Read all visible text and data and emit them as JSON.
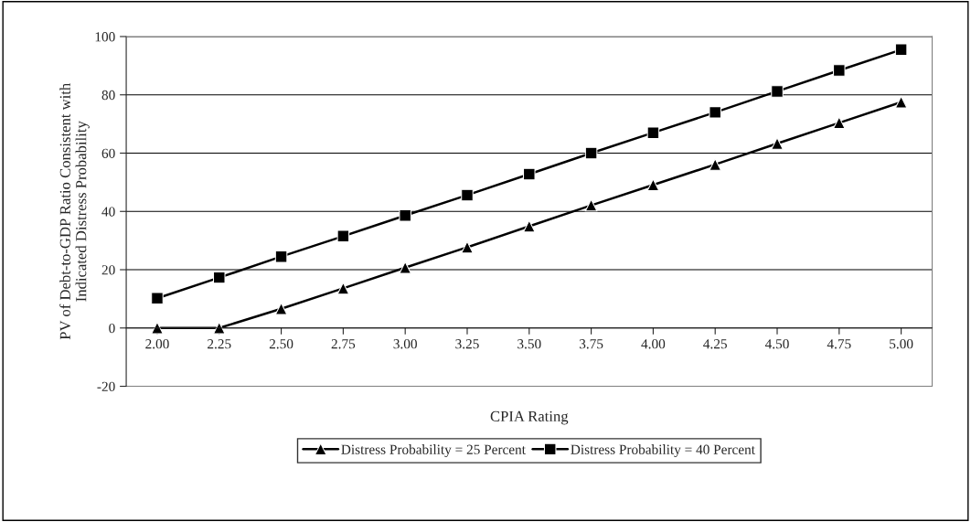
{
  "chart_data": {
    "type": "line",
    "xlabel": "CPIA Rating",
    "ylabel": "PV of Debt-to-GDP Ratio Consistent with\nIndicated Distress Probability",
    "categories": [
      "2.00",
      "2.25",
      "2.50",
      "2.75",
      "3.00",
      "3.25",
      "3.50",
      "3.75",
      "4.00",
      "4.25",
      "4.50",
      "4.75",
      "5.00"
    ],
    "series": [
      {
        "name": "Distress Probability = 25 Percent",
        "color": "#000000",
        "marker": "triangle",
        "values": [
          0,
          0,
          6.6,
          13.6,
          20.7,
          27.7,
          34.9,
          42.1,
          49.1,
          56.1,
          63.3,
          70.4,
          77.5
        ]
      },
      {
        "name": "Distress Probability = 40 Percent",
        "color": "#000000",
        "marker": "square",
        "values": [
          10.2,
          17.3,
          24.5,
          31.5,
          38.6,
          45.6,
          52.8,
          60.0,
          67.0,
          74.0,
          81.2,
          88.4,
          95.5
        ]
      }
    ],
    "ylim": [
      -20,
      100
    ],
    "yticks": [
      -20,
      0,
      20,
      40,
      60,
      80,
      100
    ],
    "grid": "y",
    "legend": "bottom",
    "line_style": "solid"
  }
}
